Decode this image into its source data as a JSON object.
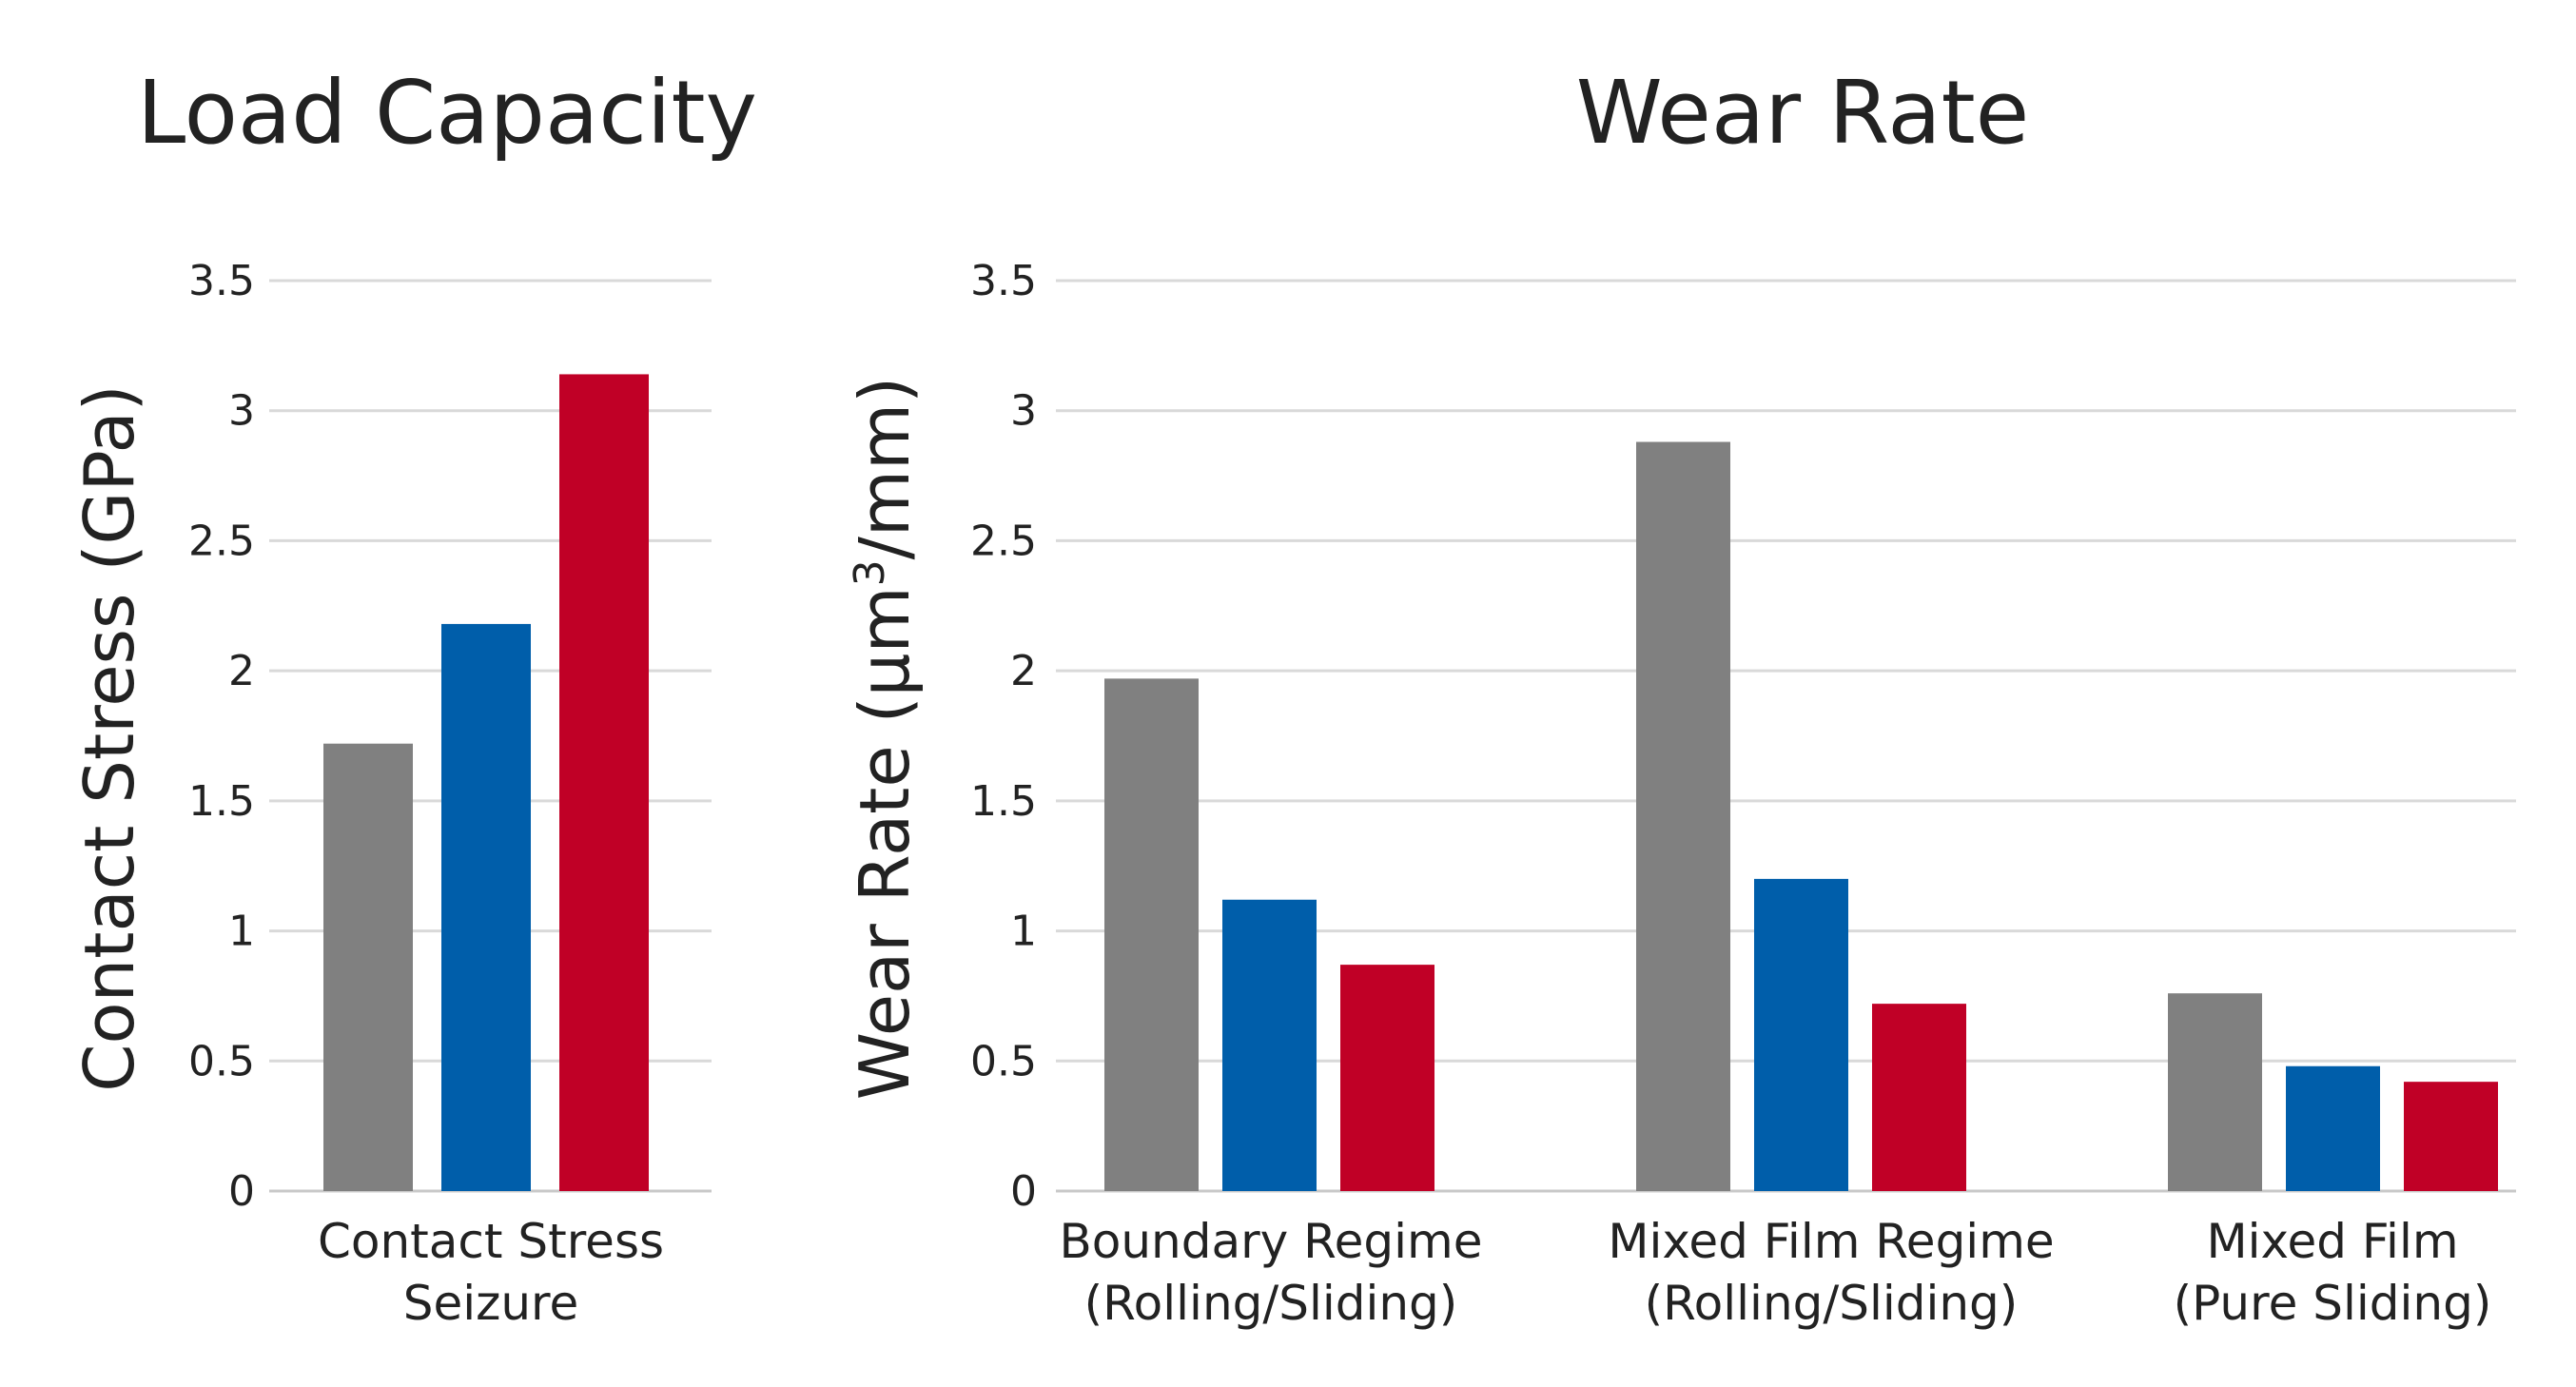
{
  "chart_data": [
    {
      "type": "bar",
      "title": "Load Capacity",
      "ylabel": "Contact Stress (GPa)",
      "ylabel_sup": "",
      "ylabel_suffix": "",
      "ylim": [
        0,
        3.5
      ],
      "yticks": [
        "0",
        "0.5",
        "1",
        "1.5",
        "2",
        "2.5",
        "3",
        "3.5"
      ],
      "grid": true,
      "categories": [
        {
          "line1": "Contact Stress",
          "line2": "Seizure"
        }
      ],
      "series": [
        {
          "color": "#808080",
          "values": [
            1.72
          ]
        },
        {
          "color": "#005eaa",
          "values": [
            2.18
          ]
        },
        {
          "color": "#c00026",
          "values": [
            3.14
          ]
        }
      ]
    },
    {
      "type": "bar",
      "title": "Wear Rate",
      "ylabel": "Wear Rate (μm",
      "ylabel_sup": "3",
      "ylabel_suffix": "/mm)",
      "ylim": [
        0,
        3.5
      ],
      "yticks": [
        "0",
        "0.5",
        "1",
        "1.5",
        "2",
        "2.5",
        "3",
        "3.5"
      ],
      "grid": true,
      "categories": [
        {
          "line1": "Boundary Regime",
          "line2": "(Rolling/Sliding)"
        },
        {
          "line1": "Mixed Film Regime",
          "line2": "(Rolling/Sliding)"
        },
        {
          "line1": "Mixed Film",
          "line2": "(Pure Sliding)"
        }
      ],
      "series": [
        {
          "color": "#808080",
          "values": [
            1.97,
            2.88,
            0.76
          ]
        },
        {
          "color": "#005eaa",
          "values": [
            1.12,
            1.2,
            0.48
          ]
        },
        {
          "color": "#c00026",
          "values": [
            0.87,
            0.72,
            0.42
          ]
        }
      ]
    }
  ]
}
